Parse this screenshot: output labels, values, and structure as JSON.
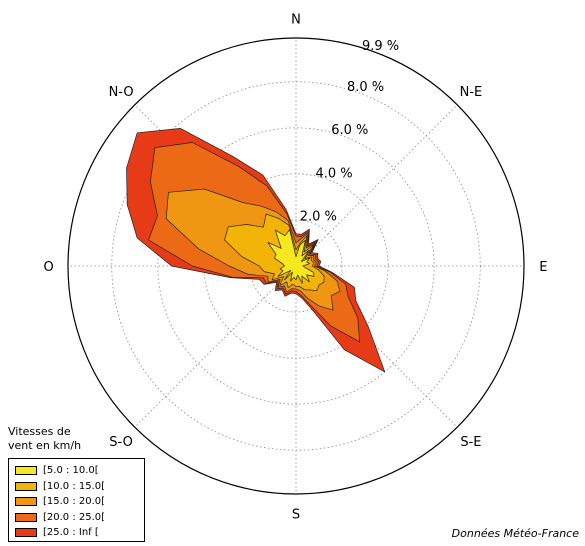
{
  "chart_data": {
    "type": "wind-rose",
    "directions": [
      "N",
      "N-E",
      "E",
      "S-E",
      "S",
      "S-O",
      "O",
      "N-O"
    ],
    "radial_ticks": [
      2.0,
      4.0,
      6.0,
      8.0,
      9.9
    ],
    "radial_tick_labels": [
      "2.0 %",
      "4.0 %",
      "6.0 %",
      "8.0 %",
      "9.9 %"
    ],
    "rmax": 9.9,
    "legend_title": "Vitesses de vent en km/h",
    "legend_title_lines": [
      "Vitesses de",
      "vent en km/h"
    ],
    "series": [
      {
        "name": "[5.0 : 10.0[",
        "color": "#f5e81e"
      },
      {
        "name": "[10.0 : 15.0[",
        "color": "#f2b507"
      },
      {
        "name": "[15.0 : 20.0[",
        "color": "#ef9712"
      },
      {
        "name": "[20.0 : 25.0[",
        "color": "#ec6a16"
      },
      {
        "name": "[25.0 : Inf [",
        "color": "#e63b16"
      }
    ],
    "angles_deg": [
      0,
      10,
      20,
      30,
      40,
      50,
      60,
      70,
      80,
      90,
      100,
      110,
      120,
      130,
      140,
      150,
      160,
      170,
      180,
      190,
      200,
      210,
      220,
      230,
      240,
      250,
      260,
      270,
      280,
      290,
      300,
      310,
      320,
      330,
      340,
      350
    ],
    "cumulative": [
      [
        0.4,
        0.9,
        1.2,
        0.5,
        0.9,
        0.3,
        0.7,
        0.5,
        0.6,
        0.3,
        0.4,
        0.8,
        0.9,
        0.6,
        0.9,
        0.5,
        0.8,
        0.4,
        0.6,
        0.5,
        0.7,
        0.3,
        0.8,
        0.3,
        0.9,
        0.6,
        0.7,
        0.5,
        0.6,
        1.0,
        1.0,
        1.6,
        1.0,
        1.8,
        1.4,
        1.6
      ],
      [
        0.7,
        1.0,
        1.4,
        0.7,
        1.2,
        0.5,
        0.8,
        0.7,
        0.8,
        0.7,
        1.0,
        1.3,
        1.4,
        1.3,
        1.4,
        1.2,
        1.1,
        0.9,
        0.9,
        0.8,
        1.0,
        0.8,
        1.1,
        0.7,
        1.2,
        1.0,
        1.4,
        1.6,
        2.4,
        3.3,
        3.4,
        2.8,
        2.2,
        2.6,
        2.2,
        1.8
      ],
      [
        1.0,
        1.2,
        1.5,
        0.9,
        1.3,
        0.7,
        0.9,
        0.8,
        0.9,
        0.8,
        1.3,
        1.9,
        2.2,
        2.0,
        2.5,
        2.0,
        1.5,
        1.1,
        1.0,
        1.0,
        1.2,
        1.0,
        1.2,
        0.9,
        1.4,
        1.3,
        2.1,
        2.9,
        4.3,
        6.0,
        6.4,
        5.2,
        3.6,
        3.0,
        2.5,
        2.0
      ],
      [
        1.3,
        1.3,
        1.6,
        1.0,
        1.4,
        0.8,
        1.0,
        0.9,
        1.0,
        0.9,
        1.5,
        2.3,
        2.6,
        3.5,
        4.3,
        3.0,
        1.8,
        1.3,
        1.1,
        1.1,
        1.3,
        1.1,
        1.3,
        1.0,
        1.5,
        1.5,
        2.8,
        4.5,
        6.5,
        6.4,
        7.3,
        8.0,
        7.0,
        5.0,
        3.7,
        2.3
      ],
      [
        1.4,
        1.4,
        1.7,
        1.1,
        1.5,
        0.9,
        1.1,
        1.0,
        1.1,
        1.0,
        1.6,
        2.7,
        3.0,
        4.1,
        6.0,
        4.2,
        2.0,
        1.4,
        1.2,
        1.2,
        1.4,
        1.2,
        1.4,
        1.1,
        1.6,
        1.7,
        2.9,
        5.4,
        7.0,
        7.8,
        8.5,
        9.0,
        7.8,
        5.5,
        4.2,
        2.5
      ]
    ]
  },
  "credit": "Données Météo-France"
}
